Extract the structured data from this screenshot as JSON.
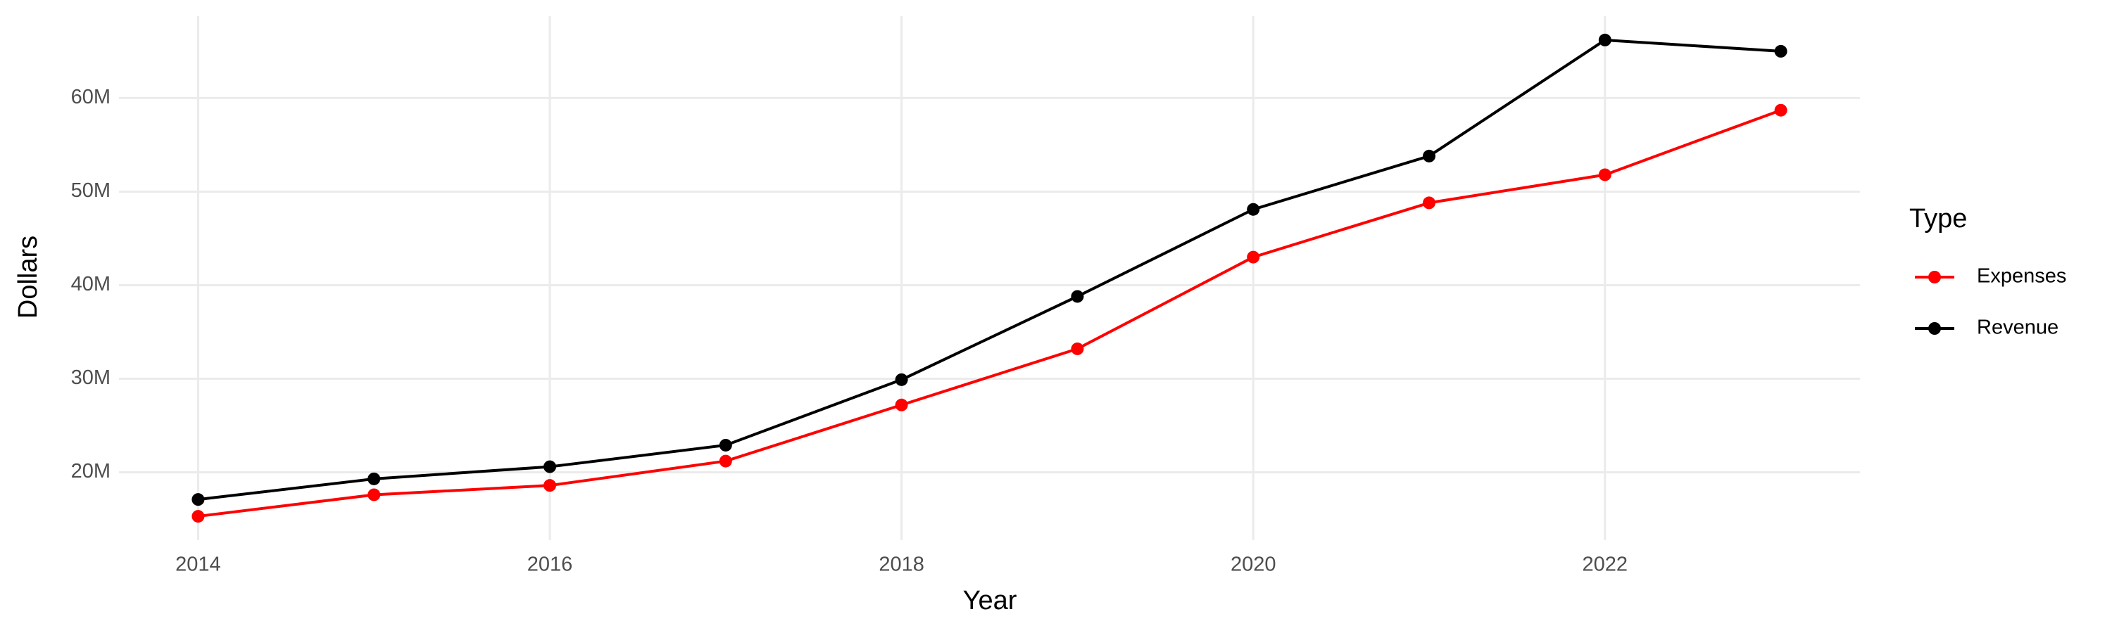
{
  "chart_data": {
    "type": "line",
    "x_label": "Year",
    "y_label": "Dollars",
    "legend_title": "Type",
    "legend_position": "right",
    "grid": true,
    "x": [
      2014,
      2015,
      2016,
      2017,
      2018,
      2019,
      2020,
      2021,
      2022,
      2023
    ],
    "series": [
      {
        "name": "Expenses",
        "color": "#ff0000",
        "values": [
          15300000,
          17600000,
          18600000,
          21200000,
          27200000,
          33200000,
          43000000,
          48800000,
          51800000,
          58700000
        ]
      },
      {
        "name": "Revenue",
        "color": "#000000",
        "values": [
          17100000,
          19300000,
          20600000,
          22900000,
          29900000,
          38800000,
          48100000,
          53800000,
          66200000,
          65000000
        ]
      }
    ],
    "xlim": [
      2013.55,
      2023.45
    ],
    "xticks": [
      2014,
      2016,
      2018,
      2020,
      2022
    ],
    "ylim": [
      12750000,
      68750000
    ],
    "yticks": [
      {
        "value": 20000000,
        "label": "20M"
      },
      {
        "value": 30000000,
        "label": "30M"
      },
      {
        "value": 40000000,
        "label": "40M"
      },
      {
        "value": 50000000,
        "label": "50M"
      },
      {
        "value": 60000000,
        "label": "60M"
      }
    ]
  }
}
